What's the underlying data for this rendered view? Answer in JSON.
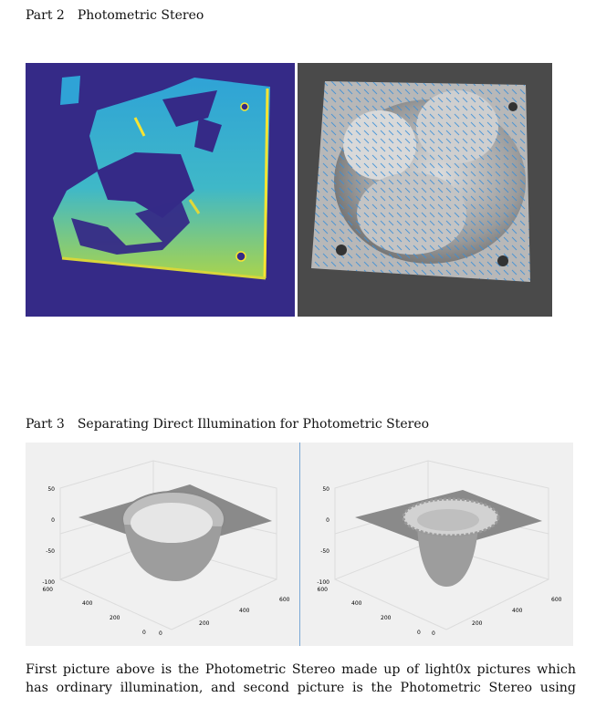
{
  "part2": {
    "number": "Part 2",
    "title": "Photometric Stereo"
  },
  "part3": {
    "number": "Part 3",
    "title": "Separating Direct Illumination for Photometric Stereo"
  },
  "paragraph": {
    "line1": "First picture above is the Photometric Stereo made up of light0x pictures which",
    "line2": "has ordinary illumination, and second picture is the Photometric Stereo using"
  },
  "plots": {
    "z_ticks": [
      "50",
      "0",
      "-50",
      "-100"
    ],
    "y_ticks": [
      "600",
      "400",
      "200",
      "0"
    ],
    "x_ticks": [
      "0",
      "200",
      "400",
      "600"
    ]
  },
  "colors": {
    "depth_background": "#352a87",
    "depth_surface": "#3fb8c8",
    "depth_edge": "#f9e430",
    "normal_arrows": "#3a8fd8",
    "plot_background": "#f0f0f0",
    "surface_gray": "#9a9a9a"
  }
}
